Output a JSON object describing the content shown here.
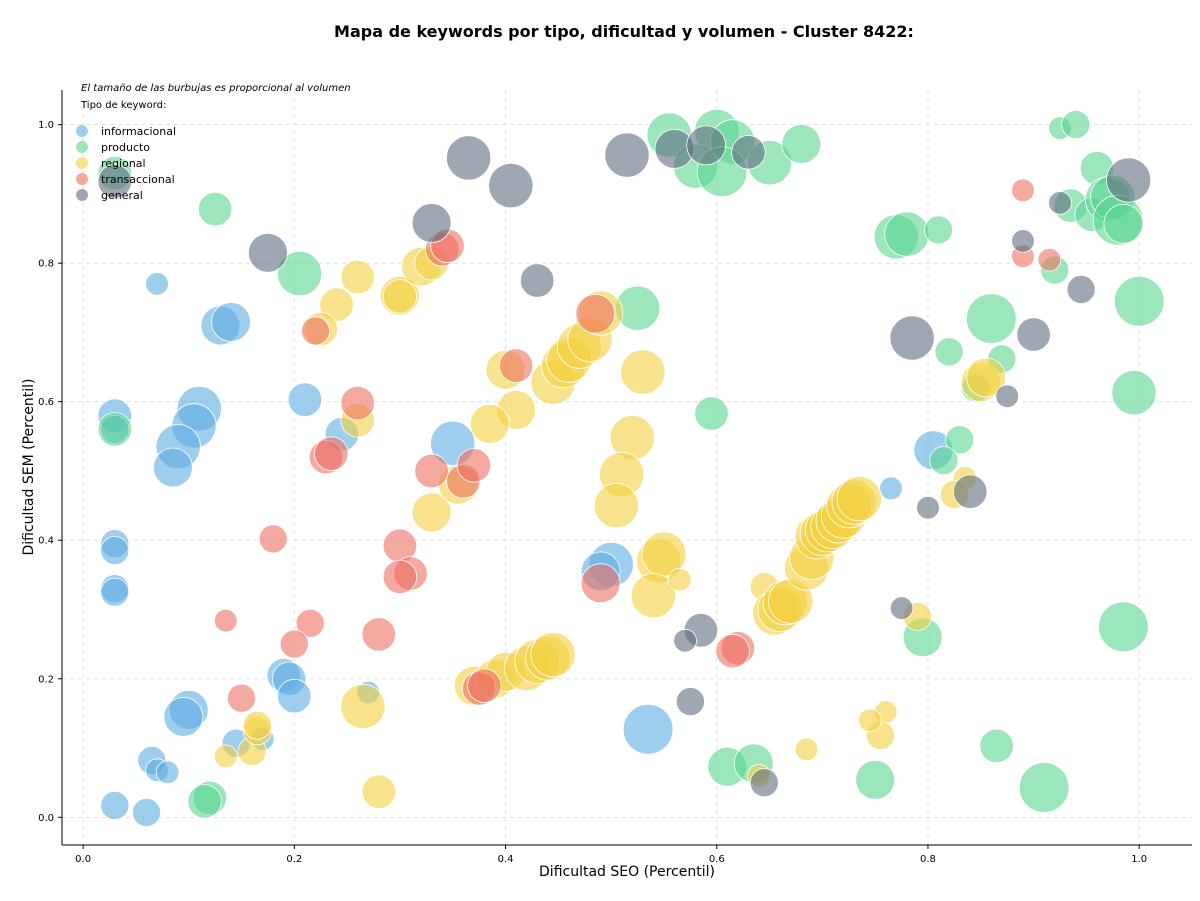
{
  "chart_data": {
    "type": "scatter",
    "title": "Mapa de keywords por tipo, dificultad y volumen - Cluster 8422:",
    "xlabel": "Dificultad SEO (Percentil)",
    "ylabel": "Dificultad SEM (Percentil)",
    "xlim": [
      -0.02,
      1.05
    ],
    "ylim": [
      -0.04,
      1.05
    ],
    "xticks": [
      "0.0",
      "0.2",
      "0.4",
      "0.6",
      "0.8",
      "1.0"
    ],
    "yticks": [
      "0.0",
      "0.2",
      "0.4",
      "0.6",
      "0.8",
      "1.0"
    ],
    "grid": true,
    "annotation": "El tamaño de las burbujas es proporcional al volumen",
    "legend_title": "Tipo de keyword:",
    "legend_position": "top-left",
    "series": [
      {
        "name": "informacional",
        "color": "#5dade2",
        "points": [
          [
            0.07,
            0.77,
            2
          ],
          [
            0.13,
            0.71,
            5
          ],
          [
            0.14,
            0.715,
            5
          ],
          [
            0.03,
            0.58,
            4
          ],
          [
            0.03,
            0.56,
            3
          ],
          [
            0.11,
            0.59,
            6
          ],
          [
            0.105,
            0.565,
            6
          ],
          [
            0.09,
            0.535,
            6
          ],
          [
            0.085,
            0.505,
            5
          ],
          [
            0.21,
            0.603,
            4
          ],
          [
            0.245,
            0.553,
            4
          ],
          [
            0.35,
            0.54,
            6
          ],
          [
            0.03,
            0.395,
            3
          ],
          [
            0.03,
            0.385,
            3
          ],
          [
            0.03,
            0.33,
            3
          ],
          [
            0.03,
            0.325,
            3
          ],
          [
            0.19,
            0.205,
            4
          ],
          [
            0.195,
            0.2,
            4
          ],
          [
            0.2,
            0.175,
            4
          ],
          [
            0.1,
            0.155,
            5
          ],
          [
            0.095,
            0.145,
            5
          ],
          [
            0.065,
            0.082,
            3
          ],
          [
            0.07,
            0.068,
            2
          ],
          [
            0.08,
            0.065,
            2
          ],
          [
            0.145,
            0.107,
            3
          ],
          [
            0.17,
            0.113,
            2
          ],
          [
            0.03,
            0.017,
            3
          ],
          [
            0.06,
            0.007,
            3
          ],
          [
            0.27,
            0.18,
            2
          ],
          [
            0.5,
            0.365,
            6
          ],
          [
            0.49,
            0.355,
            5
          ],
          [
            0.535,
            0.127,
            7
          ],
          [
            0.765,
            0.475,
            2
          ],
          [
            0.805,
            0.53,
            5
          ]
        ]
      },
      {
        "name": "producto",
        "color": "#58d68d",
        "points": [
          [
            0.03,
            0.93,
            4
          ],
          [
            0.125,
            0.878,
            4
          ],
          [
            0.205,
            0.785,
            6
          ],
          [
            0.03,
            0.56,
            4
          ],
          [
            0.555,
            0.985,
            6
          ],
          [
            0.6,
            0.99,
            6
          ],
          [
            0.615,
            0.975,
            6
          ],
          [
            0.58,
            0.94,
            6
          ],
          [
            0.605,
            0.932,
            7
          ],
          [
            0.65,
            0.945,
            6
          ],
          [
            0.68,
            0.972,
            5
          ],
          [
            0.525,
            0.735,
            6
          ],
          [
            0.595,
            0.583,
            4
          ],
          [
            0.77,
            0.838,
            6
          ],
          [
            0.78,
            0.842,
            6
          ],
          [
            0.81,
            0.848,
            3
          ],
          [
            0.86,
            0.72,
            7
          ],
          [
            0.82,
            0.672,
            3
          ],
          [
            0.87,
            0.662,
            3
          ],
          [
            0.83,
            0.545,
            3
          ],
          [
            0.815,
            0.515,
            3
          ],
          [
            0.925,
            0.995,
            2
          ],
          [
            0.94,
            1.0,
            3
          ],
          [
            0.96,
            0.937,
            4
          ],
          [
            0.935,
            0.883,
            4
          ],
          [
            0.955,
            0.87,
            4
          ],
          [
            0.97,
            0.892,
            6
          ],
          [
            0.975,
            0.895,
            6
          ],
          [
            0.98,
            0.862,
            7
          ],
          [
            0.985,
            0.857,
            5
          ],
          [
            0.92,
            0.79,
            3
          ],
          [
            1.0,
            0.745,
            7
          ],
          [
            0.995,
            0.613,
            6
          ],
          [
            0.845,
            0.62,
            3
          ],
          [
            0.985,
            0.275,
            7
          ],
          [
            0.795,
            0.26,
            5
          ],
          [
            0.865,
            0.103,
            4
          ],
          [
            0.91,
            0.043,
            7
          ],
          [
            0.75,
            0.054,
            5
          ],
          [
            0.61,
            0.073,
            5
          ],
          [
            0.635,
            0.078,
            5
          ],
          [
            0.12,
            0.028,
            4
          ],
          [
            0.115,
            0.023,
            4
          ]
        ]
      },
      {
        "name": "regional",
        "color": "#f4d03f",
        "points": [
          [
            0.26,
            0.78,
            4
          ],
          [
            0.24,
            0.74,
            4
          ],
          [
            0.225,
            0.705,
            4
          ],
          [
            0.3,
            0.753,
            5
          ],
          [
            0.3,
            0.752,
            4
          ],
          [
            0.32,
            0.795,
            5
          ],
          [
            0.33,
            0.8,
            4
          ],
          [
            0.26,
            0.573,
            4
          ],
          [
            0.4,
            0.646,
            5
          ],
          [
            0.41,
            0.588,
            5
          ],
          [
            0.445,
            0.628,
            6
          ],
          [
            0.455,
            0.652,
            6
          ],
          [
            0.46,
            0.66,
            6
          ],
          [
            0.47,
            0.68,
            6
          ],
          [
            0.48,
            0.69,
            6
          ],
          [
            0.49,
            0.728,
            6
          ],
          [
            0.53,
            0.643,
            6
          ],
          [
            0.385,
            0.568,
            5
          ],
          [
            0.33,
            0.44,
            5
          ],
          [
            0.355,
            0.48,
            5
          ],
          [
            0.52,
            0.548,
            6
          ],
          [
            0.51,
            0.495,
            6
          ],
          [
            0.505,
            0.45,
            6
          ],
          [
            0.545,
            0.37,
            6
          ],
          [
            0.55,
            0.38,
            6
          ],
          [
            0.54,
            0.32,
            6
          ],
          [
            0.565,
            0.343,
            2
          ],
          [
            0.265,
            0.16,
            6
          ],
          [
            0.28,
            0.037,
            4
          ],
          [
            0.135,
            0.088,
            2
          ],
          [
            0.16,
            0.095,
            3
          ],
          [
            0.165,
            0.125,
            3
          ],
          [
            0.165,
            0.133,
            3
          ],
          [
            0.37,
            0.19,
            5
          ],
          [
            0.39,
            0.2,
            5
          ],
          [
            0.4,
            0.21,
            5
          ],
          [
            0.42,
            0.215,
            6
          ],
          [
            0.43,
            0.225,
            6
          ],
          [
            0.44,
            0.23,
            6
          ],
          [
            0.445,
            0.235,
            6
          ],
          [
            0.645,
            0.333,
            3
          ],
          [
            0.655,
            0.295,
            6
          ],
          [
            0.66,
            0.3,
            6
          ],
          [
            0.665,
            0.31,
            6
          ],
          [
            0.67,
            0.312,
            6
          ],
          [
            0.685,
            0.36,
            6
          ],
          [
            0.69,
            0.375,
            6
          ],
          [
            0.695,
            0.405,
            6
          ],
          [
            0.7,
            0.41,
            6
          ],
          [
            0.705,
            0.415,
            6
          ],
          [
            0.71,
            0.42,
            6
          ],
          [
            0.715,
            0.428,
            6
          ],
          [
            0.72,
            0.435,
            6
          ],
          [
            0.725,
            0.45,
            6
          ],
          [
            0.73,
            0.455,
            6
          ],
          [
            0.735,
            0.46,
            6
          ],
          [
            0.79,
            0.29,
            3
          ],
          [
            0.76,
            0.152,
            2
          ],
          [
            0.755,
            0.118,
            3
          ],
          [
            0.745,
            0.14,
            2
          ],
          [
            0.685,
            0.098,
            2
          ],
          [
            0.64,
            0.06,
            2
          ],
          [
            0.85,
            0.628,
            5
          ],
          [
            0.855,
            0.635,
            5
          ],
          [
            0.835,
            0.49,
            2
          ],
          [
            0.825,
            0.466,
            3
          ]
        ]
      },
      {
        "name": "transaccional",
        "color": "#ec7063",
        "points": [
          [
            0.34,
            0.82,
            4
          ],
          [
            0.345,
            0.825,
            4
          ],
          [
            0.22,
            0.702,
            3
          ],
          [
            0.41,
            0.652,
            4
          ],
          [
            0.485,
            0.727,
            5
          ],
          [
            0.26,
            0.598,
            4
          ],
          [
            0.23,
            0.52,
            4
          ],
          [
            0.235,
            0.525,
            4
          ],
          [
            0.33,
            0.5,
            4
          ],
          [
            0.36,
            0.485,
            4
          ],
          [
            0.37,
            0.508,
            4
          ],
          [
            0.18,
            0.402,
            3
          ],
          [
            0.3,
            0.392,
            4
          ],
          [
            0.31,
            0.352,
            4
          ],
          [
            0.3,
            0.347,
            4
          ],
          [
            0.49,
            0.338,
            5
          ],
          [
            0.135,
            0.284,
            2
          ],
          [
            0.215,
            0.28,
            3
          ],
          [
            0.2,
            0.25,
            3
          ],
          [
            0.28,
            0.264,
            4
          ],
          [
            0.15,
            0.172,
            3
          ],
          [
            0.375,
            0.186,
            4
          ],
          [
            0.38,
            0.19,
            4
          ],
          [
            0.62,
            0.244,
            4
          ],
          [
            0.615,
            0.24,
            4
          ],
          [
            0.89,
            0.905,
            2
          ],
          [
            0.89,
            0.81,
            2
          ],
          [
            0.915,
            0.805,
            2
          ]
        ]
      },
      {
        "name": "general",
        "color": "#5d6d7e",
        "points": [
          [
            0.03,
            0.918,
            4
          ],
          [
            0.175,
            0.815,
            5
          ],
          [
            0.33,
            0.858,
            5
          ],
          [
            0.365,
            0.952,
            6
          ],
          [
            0.405,
            0.912,
            6
          ],
          [
            0.43,
            0.775,
            4
          ],
          [
            0.515,
            0.956,
            6
          ],
          [
            0.56,
            0.965,
            5
          ],
          [
            0.59,
            0.97,
            5
          ],
          [
            0.63,
            0.96,
            4
          ],
          [
            0.785,
            0.692,
            6
          ],
          [
            0.9,
            0.697,
            4
          ],
          [
            0.875,
            0.608,
            2
          ],
          [
            0.84,
            0.47,
            4
          ],
          [
            0.8,
            0.447,
            2
          ],
          [
            0.775,
            0.302,
            2
          ],
          [
            0.585,
            0.27,
            4
          ],
          [
            0.57,
            0.255,
            2
          ],
          [
            0.575,
            0.167,
            3
          ],
          [
            0.645,
            0.05,
            3
          ],
          [
            0.89,
            0.832,
            2
          ],
          [
            0.925,
            0.887,
            2
          ],
          [
            0.945,
            0.762,
            3
          ],
          [
            0.99,
            0.92,
            6
          ]
        ]
      }
    ]
  }
}
